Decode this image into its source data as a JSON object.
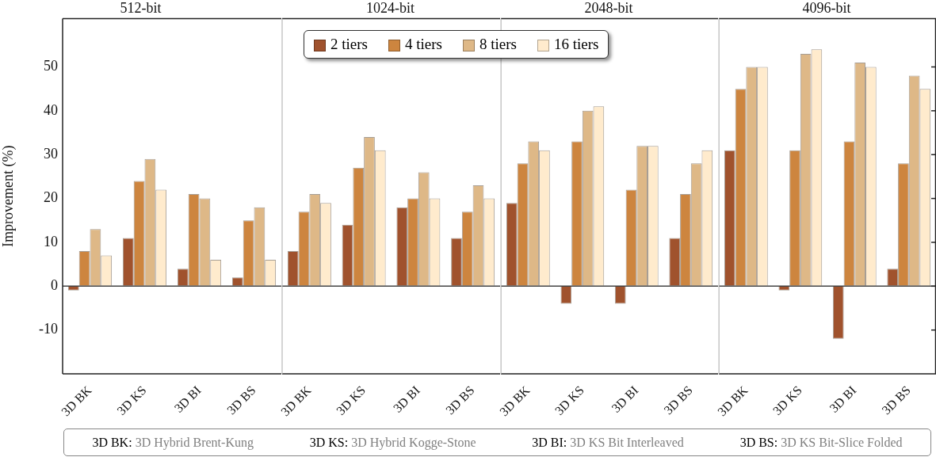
{
  "chart_data": [
    {
      "type": "bar",
      "title": "512-bit",
      "ylabel": "Improvement (%)",
      "categories": [
        "3D BK",
        "3D KS",
        "3D BI",
        "3D BS"
      ],
      "series": [
        {
          "color": "#a0522d",
          "values": [
            -1,
            11,
            4,
            2
          ]
        },
        {
          "color": "#cd853f",
          "values": [
            8,
            24,
            21,
            15
          ]
        },
        {
          "color": "#deb887",
          "values": [
            13,
            29,
            20,
            18
          ]
        },
        {
          "color": "#ffebcd",
          "values": [
            7,
            22,
            6,
            6
          ]
        }
      ],
      "ylim": [
        -20,
        61
      ],
      "yticks": [
        -10,
        0,
        10,
        20,
        30,
        40,
        50
      ],
      "grid": false,
      "ref_lines": [
        {
          "axis": "y",
          "value": 0
        }
      ],
      "annotations": [
        "3D BK: 3D Hybrid Brent-Kung",
        "3D KS: 3D Hybrid Kogge-Stone",
        "3D BI: 3D KS Bit Interleaved",
        "3D BS: 3D KS Bit-Slice Folded"
      ]
    },
    {
      "type": "bar",
      "title": "1024-bit",
      "categories": [
        "3D BK",
        "3D KS",
        "3D BI",
        "3D BS"
      ],
      "series": [
        {
          "name": "2 tiers",
          "color": "#a0522d",
          "values": [
            8,
            14,
            18,
            11
          ]
        },
        {
          "name": "4 tiers",
          "color": "#cd853f",
          "values": [
            17,
            27,
            20,
            17
          ]
        },
        {
          "name": "8 tiers",
          "color": "#deb887",
          "values": [
            21,
            34,
            26,
            23
          ]
        },
        {
          "name": "16 tiers",
          "color": "#ffebcd",
          "values": [
            19,
            31,
            20,
            20
          ]
        }
      ],
      "ylim": [
        -20,
        61
      ],
      "yticks": [
        -10,
        0,
        10,
        20,
        30,
        40,
        50
      ],
      "grid": false,
      "tick_labels": "x",
      "legend": "top right",
      "ref_lines": [
        {
          "axis": "y",
          "value": 0
        }
      ]
    },
    {
      "type": "bar",
      "title": "2048-bit",
      "categories": [
        "3D BK",
        "3D KS",
        "3D BI",
        "3D BS"
      ],
      "series": [
        {
          "color": "#a0522d",
          "values": [
            19,
            -4,
            -4,
            11
          ]
        },
        {
          "color": "#cd853f",
          "values": [
            28,
            33,
            22,
            21
          ]
        },
        {
          "color": "#deb887",
          "values": [
            33,
            40,
            32,
            28
          ]
        },
        {
          "color": "#ffebcd",
          "values": [
            31,
            41,
            32,
            31
          ]
        }
      ],
      "ylim": [
        -20,
        61
      ],
      "yticks": [
        -10,
        0,
        10,
        20,
        30,
        40,
        50
      ],
      "grid": false,
      "tick_labels": "x",
      "ref_lines": [
        {
          "axis": "y",
          "value": 0
        }
      ]
    },
    {
      "type": "bar",
      "title": "4096-bit",
      "categories": [
        "3D BK",
        "3D KS",
        "3D BI",
        "3D BS"
      ],
      "series": [
        {
          "color": "#a0522d",
          "values": [
            31,
            -1,
            -12,
            4
          ]
        },
        {
          "color": "#cd853f",
          "values": [
            45,
            31,
            33,
            28
          ]
        },
        {
          "color": "#deb887",
          "values": [
            50,
            53,
            51,
            48
          ]
        },
        {
          "color": "#ffebcd",
          "values": [
            50,
            54,
            50,
            45
          ]
        }
      ],
      "ylim": [
        -20,
        61
      ],
      "yticks": [
        -10,
        0,
        10,
        20,
        30,
        40,
        50
      ],
      "grid": false,
      "tick_labels": "x",
      "ref_lines": [
        {
          "axis": "y",
          "value": 0
        }
      ]
    }
  ]
}
